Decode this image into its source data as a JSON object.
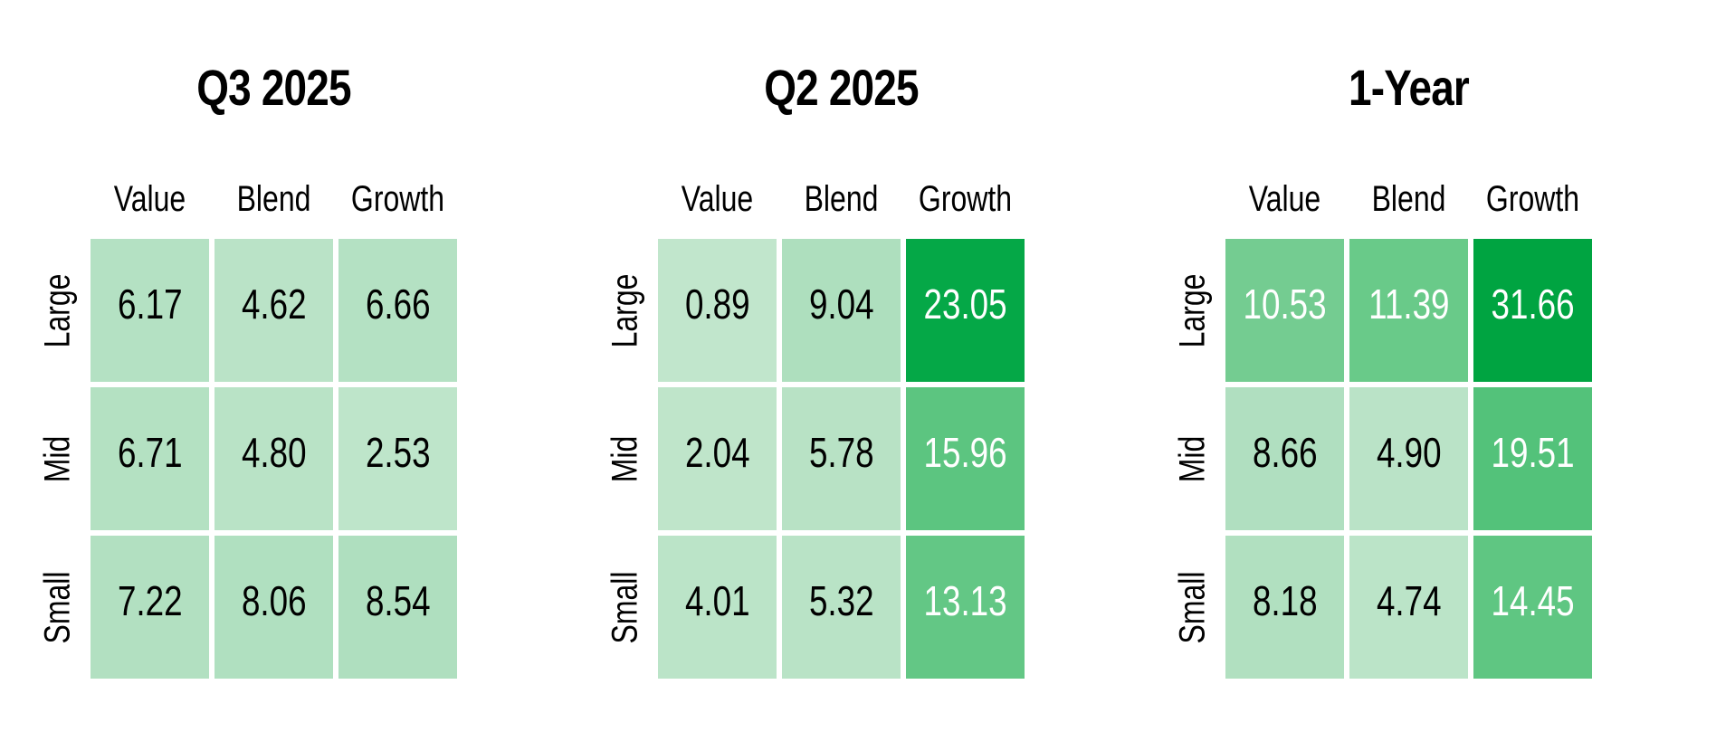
{
  "charts": [
    {
      "title": "Q3 2025",
      "columns": [
        "Value",
        "Blend",
        "Growth"
      ],
      "rows": [
        "Large",
        "Mid",
        "Small"
      ],
      "cells": [
        [
          {
            "value": "6.17",
            "bg": "#b4e1c3",
            "fg": "#000000"
          },
          {
            "value": "4.62",
            "bg": "#bae3c7",
            "fg": "#000000"
          },
          {
            "value": "6.66",
            "bg": "#b4e1c3",
            "fg": "#000000"
          }
        ],
        [
          {
            "value": "6.71",
            "bg": "#b4e1c2",
            "fg": "#000000"
          },
          {
            "value": "4.80",
            "bg": "#b9e3c6",
            "fg": "#000000"
          },
          {
            "value": "2.53",
            "bg": "#bee5ca",
            "fg": "#000000"
          }
        ],
        [
          {
            "value": "7.22",
            "bg": "#b2e0c1",
            "fg": "#000000"
          },
          {
            "value": "8.06",
            "bg": "#b0e0c0",
            "fg": "#000000"
          },
          {
            "value": "8.54",
            "bg": "#afdfbf",
            "fg": "#000000"
          }
        ]
      ]
    },
    {
      "title": "Q2 2025",
      "columns": [
        "Value",
        "Blend",
        "Growth"
      ],
      "rows": [
        "Large",
        "Mid",
        "Small"
      ],
      "cells": [
        [
          {
            "value": "0.89",
            "bg": "#c1e6cc",
            "fg": "#000000"
          },
          {
            "value": "9.04",
            "bg": "#aedfbe",
            "fg": "#000000"
          },
          {
            "value": "23.05",
            "bg": "#05a847",
            "fg": "#ffffff"
          }
        ],
        [
          {
            "value": "2.04",
            "bg": "#bfe5ca",
            "fg": "#000000"
          },
          {
            "value": "5.78",
            "bg": "#b8e2c5",
            "fg": "#000000"
          },
          {
            "value": "15.96",
            "bg": "#5cc580",
            "fg": "#ffffff"
          }
        ],
        [
          {
            "value": "4.01",
            "bg": "#bbe4c8",
            "fg": "#000000"
          },
          {
            "value": "5.32",
            "bg": "#b9e3c6",
            "fg": "#000000"
          },
          {
            "value": "13.13",
            "bg": "#63c785",
            "fg": "#ffffff"
          }
        ]
      ]
    },
    {
      "title": "1-Year",
      "columns": [
        "Value",
        "Blend",
        "Growth"
      ],
      "rows": [
        "Large",
        "Mid",
        "Small"
      ],
      "cells": [
        [
          {
            "value": "10.53",
            "bg": "#74cc91",
            "fg": "#ffffff"
          },
          {
            "value": "11.39",
            "bg": "#69ca89",
            "fg": "#ffffff"
          },
          {
            "value": "31.66",
            "bg": "#00a441",
            "fg": "#ffffff"
          }
        ],
        [
          {
            "value": "8.66",
            "bg": "#b0dfc0",
            "fg": "#000000"
          },
          {
            "value": "4.90",
            "bg": "#bae3c7",
            "fg": "#000000"
          },
          {
            "value": "19.51",
            "bg": "#53c27a",
            "fg": "#ffffff"
          }
        ],
        [
          {
            "value": "8.18",
            "bg": "#b1e0c0",
            "fg": "#000000"
          },
          {
            "value": "4.74",
            "bg": "#bbe4c8",
            "fg": "#000000"
          },
          {
            "value": "14.45",
            "bg": "#5fc682",
            "fg": "#ffffff"
          }
        ]
      ]
    }
  ],
  "colors": {
    "background": "#ffffff",
    "cell_light_green": "#b4e1c3",
    "cell_medium_green": "#5fc682",
    "cell_dark_green": "#00a843",
    "text_dark": "#000000",
    "text_light": "#ffffff"
  },
  "chart_data": [
    {
      "type": "heatmap",
      "title": "Q3 2025",
      "x_categories": [
        "Value",
        "Blend",
        "Growth"
      ],
      "y_categories": [
        "Large",
        "Mid",
        "Small"
      ],
      "values": [
        [
          6.17,
          4.62,
          6.66
        ],
        [
          6.71,
          4.8,
          2.53
        ],
        [
          7.22,
          8.06,
          8.54
        ]
      ],
      "legend_position": "none",
      "grid": false,
      "color_scale": "green, light (low) to dark (high)"
    },
    {
      "type": "heatmap",
      "title": "Q2 2025",
      "x_categories": [
        "Value",
        "Blend",
        "Growth"
      ],
      "y_categories": [
        "Large",
        "Mid",
        "Small"
      ],
      "values": [
        [
          0.89,
          9.04,
          23.05
        ],
        [
          2.04,
          5.78,
          15.96
        ],
        [
          4.01,
          5.32,
          13.13
        ]
      ],
      "legend_position": "none",
      "grid": false,
      "color_scale": "green, light (low) to dark (high)"
    },
    {
      "type": "heatmap",
      "title": "1-Year",
      "x_categories": [
        "Value",
        "Blend",
        "Growth"
      ],
      "y_categories": [
        "Large",
        "Mid",
        "Small"
      ],
      "values": [
        [
          10.53,
          11.39,
          31.66
        ],
        [
          8.66,
          4.9,
          19.51
        ],
        [
          8.18,
          4.74,
          14.45
        ]
      ],
      "legend_position": "none",
      "grid": false,
      "color_scale": "green, light (low) to dark (high)"
    }
  ]
}
